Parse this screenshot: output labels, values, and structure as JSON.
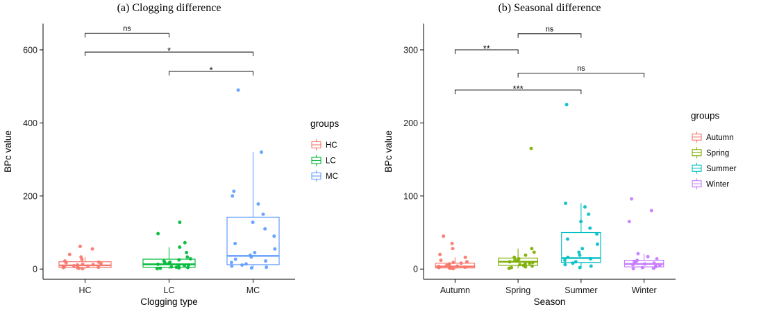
{
  "chart_data": [
    {
      "id": "panel-a",
      "type": "boxplot",
      "title": "(a) Clogging difference",
      "xlabel": "Clogging type",
      "ylabel": "BPc value",
      "ylim": [
        -28,
        672
      ],
      "yticks": [
        0,
        200,
        400,
        600
      ],
      "categories": [
        "HC",
        "LC",
        "MC"
      ],
      "legend_title": "groups",
      "legend_position": "right",
      "grid": false,
      "groups": [
        {
          "name": "HC",
          "color": "#F8766D",
          "box": {
            "whisker_low": 0.5,
            "q1": 4,
            "median": 10,
            "q3": 20,
            "whisker_high": 33
          },
          "points": [
            1,
            2,
            3,
            4,
            5,
            6,
            7,
            8,
            9,
            10,
            11,
            12,
            13,
            15,
            17,
            19,
            22,
            26,
            33,
            40,
            55,
            62
          ]
        },
        {
          "name": "LC",
          "color": "#00BA38",
          "box": {
            "whisker_low": 0.5,
            "q1": 5,
            "median": 13,
            "q3": 27,
            "whisker_high": 60
          },
          "points": [
            1,
            2,
            3,
            4,
            5,
            6,
            8,
            9,
            11,
            13,
            15,
            17,
            19,
            22,
            25,
            28,
            33,
            45,
            60,
            72,
            97,
            128
          ]
        },
        {
          "name": "MC",
          "color": "#619CFF",
          "box": {
            "whisker_low": 2,
            "q1": 12,
            "median": 36,
            "q3": 142,
            "whisker_high": 320
          },
          "points": [
            3,
            5,
            8,
            11,
            14,
            18,
            22,
            27,
            33,
            38,
            45,
            55,
            70,
            90,
            110,
            128,
            150,
            178,
            200,
            213,
            320,
            490
          ]
        }
      ],
      "significance": [
        {
          "from": "HC",
          "to": "LC",
          "label": "ns",
          "y": 645
        },
        {
          "from": "HC",
          "to": "MC",
          "label": "*",
          "y": 594
        },
        {
          "from": "LC",
          "to": "MC",
          "label": "*",
          "y": 541
        }
      ]
    },
    {
      "id": "panel-b",
      "type": "boxplot",
      "title": "(b) Seasonal difference",
      "xlabel": "Season",
      "ylabel": "BPc value",
      "ylim": [
        -14,
        336
      ],
      "yticks": [
        0,
        100,
        200,
        300
      ],
      "categories": [
        "Autumn",
        "Spring",
        "Summer",
        "Winter"
      ],
      "legend_title": "groups",
      "legend_position": "right",
      "grid": false,
      "groups": [
        {
          "name": "Autumn",
          "color": "#F8766D",
          "box": {
            "whisker_low": 0.3,
            "q1": 1.5,
            "median": 3.5,
            "q3": 8,
            "whisker_high": 16
          },
          "points": [
            0.5,
            1,
            1.5,
            2,
            2.5,
            3,
            3.5,
            4,
            5,
            6,
            7,
            8,
            9,
            10,
            12,
            16,
            20,
            28,
            35,
            45
          ]
        },
        {
          "name": "Spring",
          "color": "#7CAE00",
          "box": {
            "whisker_low": 1,
            "q1": 5,
            "median": 10,
            "q3": 15,
            "whisker_high": 28
          },
          "points": [
            1,
            2,
            3,
            4,
            5,
            6,
            7,
            8,
            9,
            10,
            11,
            12,
            14,
            16,
            19,
            23,
            28,
            165
          ]
        },
        {
          "name": "Summer",
          "color": "#00BFC4",
          "box": {
            "whisker_low": 2,
            "q1": 9,
            "median": 15,
            "q3": 50,
            "whisker_high": 90
          },
          "points": [
            2,
            4,
            6,
            8,
            10,
            12,
            14,
            16,
            19,
            23,
            28,
            34,
            41,
            48,
            56,
            65,
            75,
            85,
            90,
            225
          ]
        },
        {
          "name": "Winter",
          "color": "#C77CFF",
          "box": {
            "whisker_low": 0.5,
            "q1": 3,
            "median": 7,
            "q3": 12,
            "whisker_high": 21
          },
          "points": [
            0.5,
            1,
            2,
            3,
            4,
            5,
            6,
            7,
            8,
            9,
            10,
            12,
            14,
            17,
            21,
            65,
            80,
            96
          ]
        }
      ],
      "significance": [
        {
          "from": "Spring",
          "to": "Summer",
          "label": "ns",
          "y": 322
        },
        {
          "from": "Autumn",
          "to": "Spring",
          "label": "**",
          "y": 300
        },
        {
          "from": "Spring",
          "to": "Winter",
          "label": "ns",
          "y": 268
        },
        {
          "from": "Autumn",
          "to": "Summer",
          "label": "***",
          "y": 245
        }
      ]
    }
  ]
}
